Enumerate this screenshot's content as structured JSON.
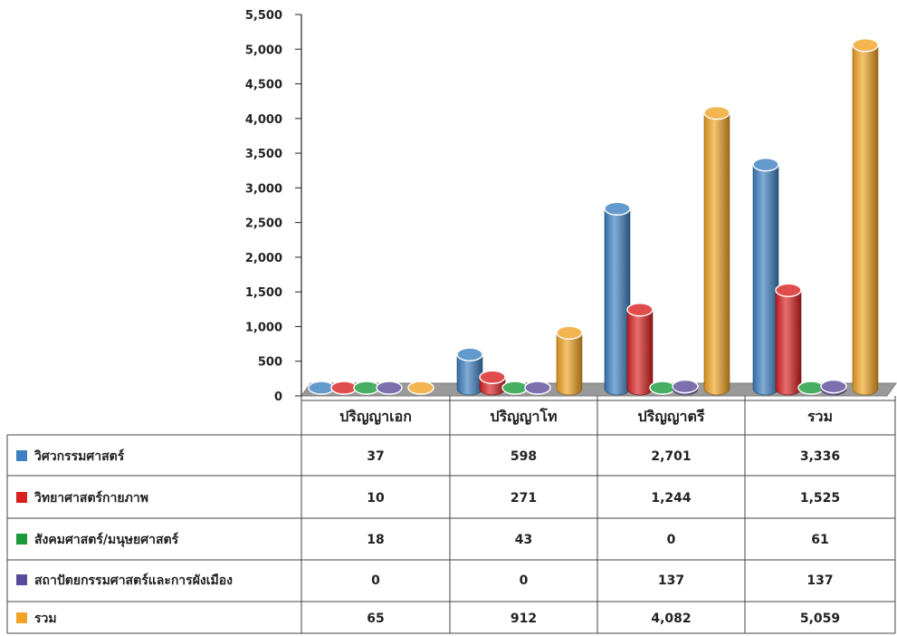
{
  "chart_data": {
    "type": "bar",
    "style": "3d-cylinder",
    "categories": [
      "ปริญญาเอก",
      "ปริญญาโท",
      "ปริญญาตรี",
      "รวม"
    ],
    "series": [
      {
        "name": "วิศวกรรมศาสตร์",
        "color": "#3d7fc1",
        "values": [
          37,
          598,
          2701,
          3336
        ]
      },
      {
        "name": "วิทยาศาสตร์กายภาพ",
        "color": "#d92121",
        "values": [
          10,
          271,
          1244,
          1525
        ]
      },
      {
        "name": "สังคมศาสตร์/มนุษยศาสตร์",
        "color": "#1a9a3a",
        "values": [
          18,
          43,
          0,
          61
        ]
      },
      {
        "name": "สถาปัตยกรรมศาสตร์และการผังเมือง",
        "color": "#5a4b9a",
        "values": [
          0,
          0,
          137,
          137
        ]
      },
      {
        "name": "รวม",
        "color": "#f0a324",
        "values": [
          65,
          912,
          4082,
          5059
        ]
      }
    ],
    "table_values": [
      [
        "37",
        "598",
        "2,701",
        "3,336"
      ],
      [
        "10",
        "271",
        "1,244",
        "1,525"
      ],
      [
        "18",
        "43",
        "0",
        "61"
      ],
      [
        "0",
        "0",
        "137",
        "137"
      ],
      [
        "65",
        "912",
        "4,082",
        "5,059"
      ]
    ],
    "ylim": [
      0,
      5500
    ],
    "yticks": [
      "0",
      "500",
      "1,000",
      "1,500",
      "2,000",
      "2,500",
      "3,000",
      "3,500",
      "4,000",
      "4,500",
      "5,000",
      "5,500"
    ],
    "ytick_values": [
      0,
      500,
      1000,
      1500,
      2000,
      2500,
      3000,
      3500,
      4000,
      4500,
      5000,
      5500
    ],
    "legend": "data-table-below",
    "grid": false,
    "title": "",
    "xlabel": "",
    "ylabel": ""
  }
}
